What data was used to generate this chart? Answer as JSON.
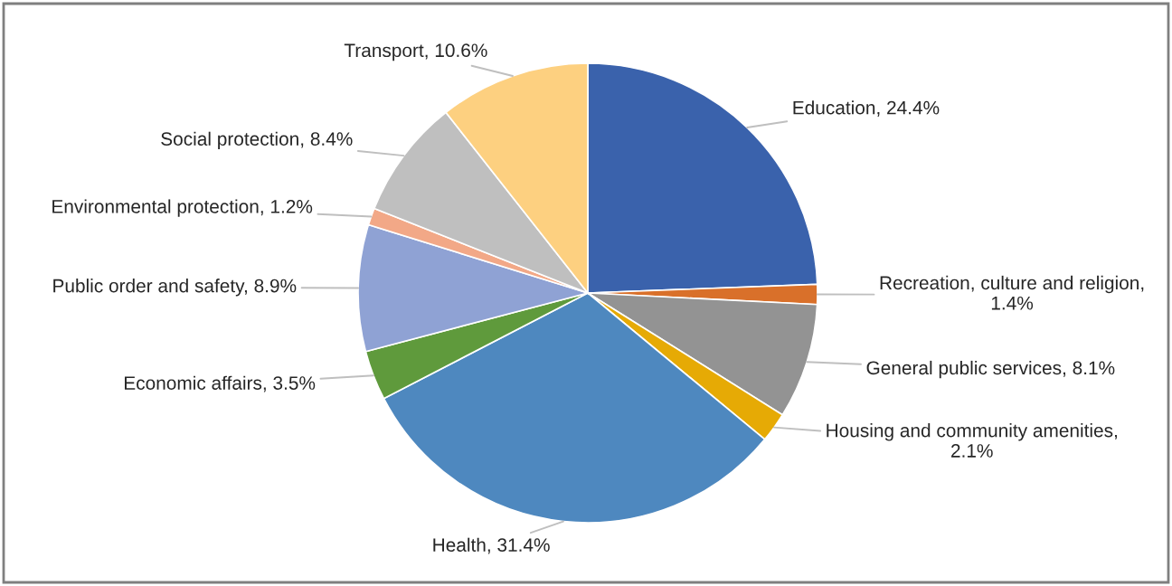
{
  "chart_data": {
    "type": "pie",
    "categories": [
      "Education, 24.4%",
      "Recreation, culture and religion, 1.4%",
      "General public services, 8.1%",
      "Housing and community amenities, 2.1%",
      "Health, 31.4%",
      "Economic affairs, 3.5%",
      "Public order and safety, 8.9%",
      "Environmental protection, 1.2%",
      "Social protection, 8.4%",
      "Transport, 10.6%"
    ],
    "values": [
      24.4,
      1.4,
      8.1,
      2.1,
      31.4,
      3.5,
      8.9,
      1.2,
      8.4,
      10.6
    ],
    "colors": [
      "#3a62ac",
      "#d9702a",
      "#939393",
      "#e6aa05",
      "#4e88bf",
      "#5f9a3c",
      "#8fa2d4",
      "#f2a887",
      "#bfbfbf",
      "#fdd080"
    ],
    "legend": false
  }
}
